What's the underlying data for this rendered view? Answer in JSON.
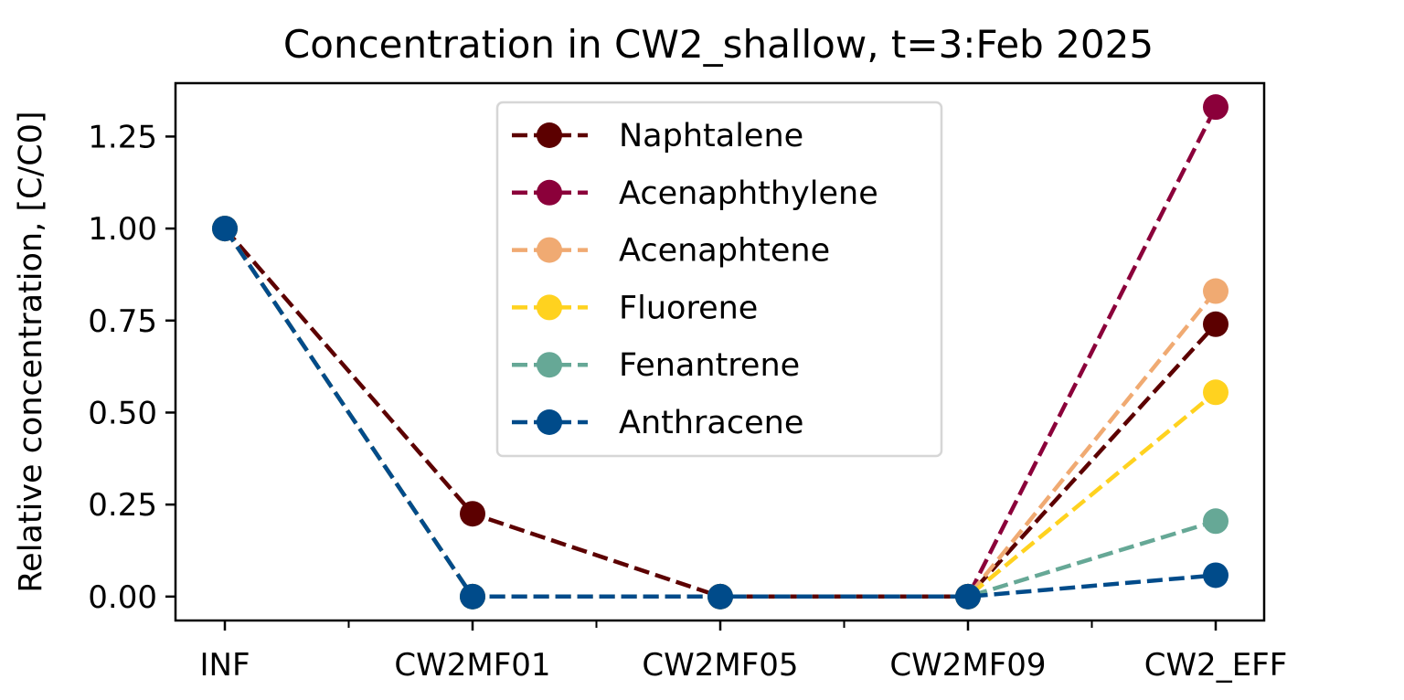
{
  "chart_data": {
    "type": "line",
    "title": "Concentration in CW2_shallow, t=3:Feb 2025",
    "xlabel": "",
    "ylabel": "Relative concentration, [C/C0]",
    "categories": [
      "INF",
      "CW2MF01",
      "CW2MF05",
      "CW2MF09",
      "CW2_EFF"
    ],
    "ylim": [
      -0.065,
      1.395
    ],
    "yticks": [
      0.0,
      0.25,
      0.5,
      0.75,
      1.0,
      1.25
    ],
    "ytick_labels": [
      "0.00",
      "0.25",
      "0.50",
      "0.75",
      "1.00",
      "1.25"
    ],
    "minor_xticks": true,
    "grid": false,
    "line_style": "dashed",
    "marker": "circle",
    "legend_position": "upper center",
    "series": [
      {
        "name": "Naphtalene",
        "color": "#5c0000",
        "values": [
          1.0,
          0.225,
          0.0,
          0.0,
          0.74
        ]
      },
      {
        "name": "Acenaphthylene",
        "color": "#8b003a",
        "values": [
          1.0,
          0.0,
          0.0,
          0.0,
          1.33
        ]
      },
      {
        "name": "Acenaphtene",
        "color": "#f0aa72",
        "values": [
          1.0,
          0.0,
          0.0,
          0.0,
          0.83
        ]
      },
      {
        "name": "Fluorene",
        "color": "#ffd21f",
        "values": [
          1.0,
          0.0,
          0.0,
          0.0,
          0.555
        ]
      },
      {
        "name": "Fenantrene",
        "color": "#66a896",
        "values": [
          1.0,
          0.0,
          0.0,
          0.0,
          0.205
        ]
      },
      {
        "name": "Anthracene",
        "color": "#004b8a",
        "values": [
          1.0,
          0.0,
          0.0,
          0.0,
          0.058
        ]
      }
    ]
  }
}
